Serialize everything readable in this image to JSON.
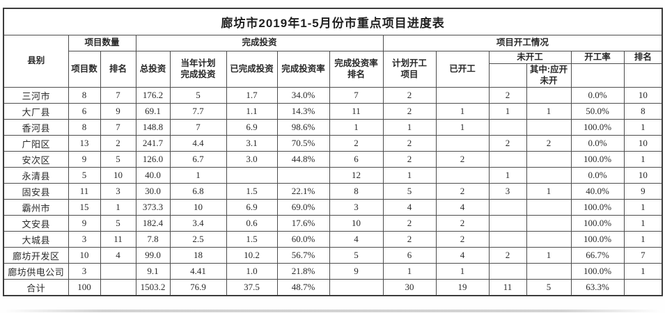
{
  "title": "廊坊市2019年1-5月份市重点项目进度表",
  "header": {
    "county": "县别",
    "group_quantity": "项目数量",
    "group_investment": "完成投资",
    "group_start": "项目开工情况",
    "project_count": "项目数",
    "rank_quantity": "排名",
    "total_investment": "总投资",
    "planned_investment": "当年计划\n完成投资",
    "completed_investment": "已完成投资",
    "completion_rate": "完成投资率",
    "completion_rate_rank": "完成投资率\n排名",
    "planned_start_projects": "计划开工\n项目",
    "started": "已开工",
    "not_started": "未开工",
    "should_start_not_started": "其中:应开\n未开",
    "start_rate": "开工率",
    "rank_start": "排名"
  },
  "rows": [
    {
      "county": "三河市",
      "cells": [
        "8",
        "7",
        "176.2",
        "5",
        "1.7",
        "34.0%",
        "7",
        "2",
        "",
        "2",
        "",
        "0.0%",
        "10"
      ]
    },
    {
      "county": "大厂县",
      "cells": [
        "6",
        "9",
        "69.1",
        "7.7",
        "1.1",
        "14.3%",
        "11",
        "2",
        "1",
        "1",
        "1",
        "50.0%",
        "8"
      ]
    },
    {
      "county": "香河县",
      "cells": [
        "8",
        "7",
        "148.8",
        "7",
        "6.9",
        "98.6%",
        "1",
        "1",
        "1",
        "",
        "",
        "100.0%",
        "1"
      ]
    },
    {
      "county": "广阳区",
      "cells": [
        "13",
        "2",
        "241.7",
        "4.4",
        "3.1",
        "70.5%",
        "2",
        "2",
        "",
        "2",
        "2",
        "0.0%",
        "10"
      ]
    },
    {
      "county": "安次区",
      "cells": [
        "9",
        "5",
        "126.0",
        "6.7",
        "3.0",
        "44.8%",
        "6",
        "2",
        "2",
        "",
        "",
        "100.0%",
        "1"
      ]
    },
    {
      "county": "永清县",
      "cells": [
        "5",
        "10",
        "40.0",
        "1",
        "",
        "",
        "12",
        "1",
        "",
        "1",
        "",
        "0.0%",
        "10"
      ]
    },
    {
      "county": "固安县",
      "cells": [
        "11",
        "3",
        "30.0",
        "6.8",
        "1.5",
        "22.1%",
        "8",
        "5",
        "2",
        "3",
        "1",
        "40.0%",
        "9"
      ]
    },
    {
      "county": "霸州市",
      "cells": [
        "15",
        "1",
        "373.3",
        "10",
        "6.9",
        "69.0%",
        "3",
        "4",
        "4",
        "",
        "",
        "100.0%",
        "1"
      ]
    },
    {
      "county": "文安县",
      "cells": [
        "9",
        "5",
        "182.4",
        "3.4",
        "0.6",
        "17.6%",
        "10",
        "2",
        "2",
        "",
        "",
        "100.0%",
        "1"
      ]
    },
    {
      "county": "大城县",
      "cells": [
        "3",
        "11",
        "7.8",
        "2.5",
        "1.5",
        "60.0%",
        "4",
        "2",
        "2",
        "",
        "",
        "100.0%",
        "1"
      ]
    },
    {
      "county": "廊坊开发区",
      "cells": [
        "10",
        "4",
        "99.0",
        "18",
        "10.2",
        "56.7%",
        "5",
        "6",
        "4",
        "2",
        "1",
        "66.7%",
        "7"
      ]
    },
    {
      "county": "廊坊供电公司",
      "cells": [
        "3",
        "",
        "9.1",
        "4.41",
        "1.0",
        "21.8%",
        "9",
        "1",
        "1",
        "",
        "",
        "100.0%",
        "1"
      ]
    },
    {
      "county": "合计",
      "cells": [
        "100",
        "",
        "1503.2",
        "76.9",
        "37.5",
        "48.7%",
        "",
        "30",
        "19",
        "11",
        "5",
        "63.3%",
        ""
      ]
    }
  ]
}
